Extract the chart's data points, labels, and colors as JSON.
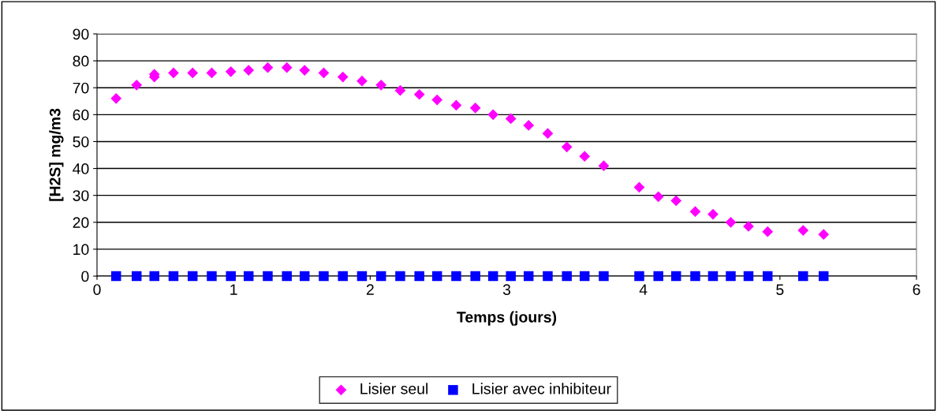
{
  "chart_data": {
    "type": "scatter",
    "xlabel": "Temps (jours)",
    "ylabel": "[H2S] mg/m3",
    "xlim": [
      0,
      6
    ],
    "xticks": [
      0,
      1,
      2,
      3,
      4,
      5,
      6
    ],
    "ylim": [
      0,
      90
    ],
    "yticks": [
      0,
      10,
      20,
      30,
      40,
      50,
      60,
      70,
      80,
      90
    ],
    "grid": "y",
    "legend": "bottom",
    "series": [
      {
        "name": "Lisier seul",
        "color": "#ff00ff",
        "marker": "diamond",
        "x": [
          0.14,
          0.29,
          0.42,
          0.42,
          0.56,
          0.7,
          0.84,
          0.98,
          1.11,
          1.25,
          1.39,
          1.52,
          1.66,
          1.8,
          1.94,
          2.08,
          2.22,
          2.36,
          2.49,
          2.63,
          2.77,
          2.9,
          3.03,
          3.16,
          3.3,
          3.44,
          3.57,
          3.71,
          3.97,
          4.11,
          4.24,
          4.38,
          4.51,
          4.64,
          4.77,
          4.91,
          5.17,
          5.32
        ],
        "values": [
          66,
          71,
          74,
          75,
          75.5,
          75.5,
          75.5,
          76,
          76.5,
          77.5,
          77.5,
          76.5,
          75.5,
          74,
          72.5,
          71,
          69,
          67.5,
          65.5,
          63.5,
          62.5,
          60,
          58.5,
          56,
          53,
          48,
          44.5,
          41,
          33,
          29.5,
          28,
          24,
          23,
          20,
          18.5,
          16.5,
          17,
          15.5
        ]
      },
      {
        "name": "Lisier avec inhibiteur",
        "color": "#0000ff",
        "marker": "square",
        "x": [
          0.14,
          0.29,
          0.42,
          0.56,
          0.7,
          0.84,
          0.98,
          1.11,
          1.25,
          1.39,
          1.52,
          1.66,
          1.8,
          1.94,
          2.08,
          2.22,
          2.36,
          2.49,
          2.63,
          2.77,
          2.9,
          3.03,
          3.16,
          3.3,
          3.44,
          3.57,
          3.71,
          3.97,
          4.11,
          4.24,
          4.38,
          4.51,
          4.64,
          4.77,
          4.91,
          5.17,
          5.32
        ],
        "values": [
          0,
          0,
          0,
          0,
          0,
          0,
          0,
          0,
          0,
          0,
          0,
          0,
          0,
          0,
          0,
          0,
          0,
          0,
          0,
          0,
          0,
          0,
          0,
          0,
          0,
          0,
          0,
          0,
          0,
          0,
          0,
          0,
          0,
          0,
          0,
          0,
          0
        ]
      }
    ]
  }
}
